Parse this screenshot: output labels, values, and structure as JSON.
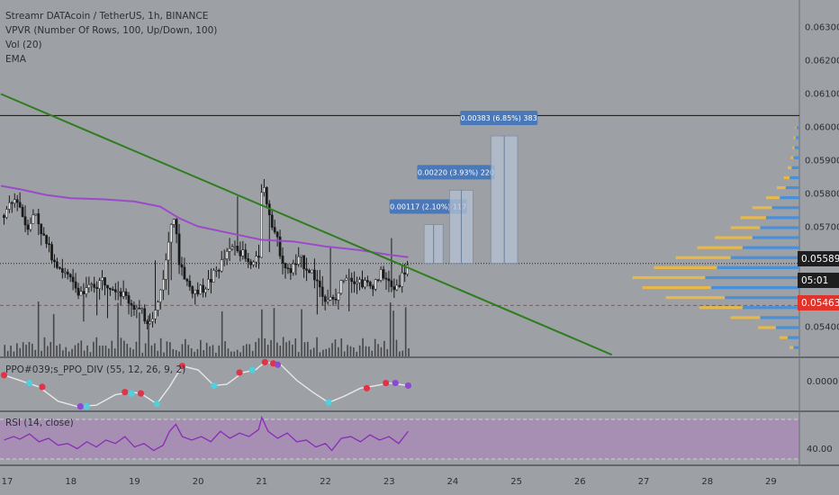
{
  "legend": {
    "title": "Streamr DATAcoin / TetherUS, 1h, BINANCE",
    "vpvr": "VPVR (Number Of Rows, 100, Up/Down, 100)",
    "vol": "Vol (20)",
    "ema": "EMA"
  },
  "ppo_label": "PPO#039;s_PPO_DIV (55, 12, 26, 9, 2)",
  "rsi_label": "RSI (14, close)",
  "tags": {
    "last_price": "0.05589",
    "countdown": "05:01",
    "red_level": "0.05463",
    "ppo_zero": "0.0000",
    "rsi_level": "40.00"
  },
  "colors": {
    "background": "#9da0a5",
    "candle": "#1a1a1a",
    "ema": "#9b4bc8",
    "trendline": "#2e7d1e",
    "red_level": "#e0332c",
    "vpvr_up": "#4a90d9",
    "vpvr_down": "#e6b84a",
    "ppo_line": "#e8e8e8",
    "ppo_dot_up": "#e0334a",
    "ppo_dot_down": "#4fd0e0",
    "ppo_dot_purple": "#8a4bd0",
    "rsi_line": "#8a2bb8",
    "rsi_fill": "#a98ab8",
    "projection_label": "#4a78b8",
    "projection_box": "#b7c2d4"
  },
  "chart_data": {
    "type": "candlestick",
    "x_ticks": [
      "17",
      "18",
      "19",
      "20",
      "21",
      "22",
      "23",
      "24",
      "25",
      "26",
      "27",
      "28",
      "29"
    ],
    "y_ticks": [
      "0.06300",
      "0.06200",
      "0.06100",
      "0.06000",
      "0.05900",
      "0.05800",
      "0.05700",
      "0.05400"
    ],
    "ylim": [
      0.0531,
      0.0638
    ],
    "last_price": 0.05589,
    "horizontal_line": 0.06033,
    "red_level": 0.05463,
    "trendline": [
      {
        "x": 16.9,
        "y": 0.06098
      },
      {
        "x": 26.5,
        "y": 0.05315
      }
    ],
    "projections": [
      {
        "label": "0.00117 (2.10%) 117",
        "x_start": 23.55,
        "x_end": 23.85,
        "base": 0.05589,
        "target": 0.05706
      },
      {
        "label": "0.00220 (3.93%) 220",
        "x_start": 23.95,
        "x_end": 24.32,
        "base": 0.05589,
        "target": 0.05809
      },
      {
        "label": "0.00383 (6.85%) 383",
        "x_start": 24.6,
        "x_end": 25.02,
        "base": 0.05589,
        "target": 0.05972
      }
    ],
    "ema_path": [
      [
        16.9,
        0.05822
      ],
      [
        17.2,
        0.05812
      ],
      [
        17.6,
        0.05795
      ],
      [
        18.0,
        0.05785
      ],
      [
        18.5,
        0.05782
      ],
      [
        19.0,
        0.05775
      ],
      [
        19.4,
        0.0576
      ],
      [
        19.7,
        0.05725
      ],
      [
        20.0,
        0.057
      ],
      [
        20.5,
        0.0568
      ],
      [
        21.0,
        0.0566
      ],
      [
        21.5,
        0.05655
      ],
      [
        22.0,
        0.0564
      ],
      [
        22.5,
        0.0563
      ],
      [
        23.0,
        0.05615
      ],
      [
        23.3,
        0.05608
      ]
    ],
    "price_path": [
      [
        16.9,
        0.0572
      ],
      [
        17.05,
        0.0576
      ],
      [
        17.15,
        0.0579
      ],
      [
        17.3,
        0.057
      ],
      [
        17.45,
        0.0574
      ],
      [
        17.6,
        0.0565
      ],
      [
        17.75,
        0.056
      ],
      [
        17.9,
        0.0556
      ],
      [
        18.05,
        0.0552
      ],
      [
        18.2,
        0.055
      ],
      [
        18.35,
        0.0552
      ],
      [
        18.5,
        0.0554
      ],
      [
        18.7,
        0.0552
      ],
      [
        18.9,
        0.0548
      ],
      [
        19.05,
        0.0545
      ],
      [
        19.2,
        0.0542
      ],
      [
        19.35,
        0.0545
      ],
      [
        19.5,
        0.056
      ],
      [
        19.6,
        0.0576
      ],
      [
        19.7,
        0.056
      ],
      [
        19.85,
        0.0552
      ],
      [
        20.0,
        0.055
      ],
      [
        20.2,
        0.0554
      ],
      [
        20.4,
        0.056
      ],
      [
        20.6,
        0.0565
      ],
      [
        20.8,
        0.0558
      ],
      [
        20.95,
        0.056
      ],
      [
        21.0,
        0.0584
      ],
      [
        21.1,
        0.0576
      ],
      [
        21.25,
        0.0565
      ],
      [
        21.4,
        0.0556
      ],
      [
        21.6,
        0.056
      ],
      [
        21.8,
        0.0556
      ],
      [
        22.0,
        0.0549
      ],
      [
        22.15,
        0.0547
      ],
      [
        22.3,
        0.0556
      ],
      [
        22.5,
        0.0554
      ],
      [
        22.7,
        0.0552
      ],
      [
        22.9,
        0.0556
      ],
      [
        23.05,
        0.0551
      ],
      [
        23.15,
        0.0553
      ],
      [
        23.3,
        0.05589
      ]
    ],
    "vpvr_profile": [
      [
        0.0599,
        3,
        1
      ],
      [
        0.0596,
        4,
        2
      ],
      [
        0.0593,
        5,
        2
      ],
      [
        0.059,
        6,
        3
      ],
      [
        0.0587,
        8,
        4
      ],
      [
        0.0584,
        10,
        6
      ],
      [
        0.0581,
        14,
        9
      ],
      [
        0.0578,
        20,
        14
      ],
      [
        0.0575,
        28,
        20
      ],
      [
        0.0572,
        34,
        26
      ],
      [
        0.0569,
        40,
        30
      ],
      [
        0.0566,
        48,
        38
      ],
      [
        0.0563,
        58,
        46
      ],
      [
        0.056,
        70,
        56
      ],
      [
        0.0557,
        84,
        64
      ],
      [
        0.0554,
        96,
        74
      ],
      [
        0.0551,
        90,
        70
      ],
      [
        0.0548,
        76,
        60
      ],
      [
        0.0545,
        58,
        44
      ],
      [
        0.0542,
        40,
        30
      ],
      [
        0.0539,
        24,
        18
      ],
      [
        0.0536,
        12,
        8
      ],
      [
        0.0533,
        6,
        4
      ]
    ],
    "ppo": {
      "zero": 0,
      "ylim": [
        -1,
        1
      ],
      "path": [
        [
          16.95,
          0.35
        ],
        [
          17.2,
          0.15
        ],
        [
          17.5,
          -0.1
        ],
        [
          17.8,
          -0.65
        ],
        [
          18.1,
          -0.85
        ],
        [
          18.4,
          -0.8
        ],
        [
          18.7,
          -0.4
        ],
        [
          18.95,
          -0.3
        ],
        [
          19.1,
          -0.35
        ],
        [
          19.35,
          -0.75
        ],
        [
          19.55,
          -0.1
        ],
        [
          19.75,
          0.7
        ],
        [
          20.0,
          0.55
        ],
        [
          20.25,
          -0.05
        ],
        [
          20.45,
          0.0
        ],
        [
          20.7,
          0.45
        ],
        [
          20.9,
          0.55
        ],
        [
          21.05,
          0.85
        ],
        [
          21.3,
          0.75
        ],
        [
          21.55,
          0.15
        ],
        [
          21.8,
          -0.3
        ],
        [
          22.05,
          -0.7
        ],
        [
          22.3,
          -0.45
        ],
        [
          22.55,
          -0.15
        ],
        [
          22.8,
          -0.05
        ],
        [
          23.0,
          0.05
        ],
        [
          23.3,
          -0.05
        ]
      ],
      "dots": [
        [
          16.95,
          0.35,
          "up"
        ],
        [
          17.35,
          0.05,
          "down"
        ],
        [
          17.55,
          -0.1,
          "up"
        ],
        [
          18.15,
          -0.85,
          "purple"
        ],
        [
          18.25,
          -0.85,
          "down"
        ],
        [
          18.85,
          -0.3,
          "up"
        ],
        [
          18.95,
          -0.35,
          "down"
        ],
        [
          19.1,
          -0.35,
          "up"
        ],
        [
          19.35,
          -0.75,
          "down"
        ],
        [
          19.75,
          0.7,
          "up"
        ],
        [
          20.25,
          -0.05,
          "down"
        ],
        [
          20.65,
          0.45,
          "up"
        ],
        [
          20.85,
          0.55,
          "down"
        ],
        [
          21.05,
          0.85,
          "up"
        ],
        [
          21.18,
          0.8,
          "up"
        ],
        [
          21.25,
          0.75,
          "purple"
        ],
        [
          22.05,
          -0.7,
          "down"
        ],
        [
          22.65,
          -0.15,
          "up"
        ],
        [
          22.95,
          0.05,
          "up"
        ],
        [
          23.1,
          0.05,
          "purple"
        ],
        [
          23.3,
          -0.05,
          "purple"
        ]
      ]
    },
    "rsi": {
      "ylim": [
        20,
        80
      ],
      "path": [
        [
          16.95,
          48
        ],
        [
          17.1,
          52
        ],
        [
          17.2,
          49
        ],
        [
          17.35,
          55
        ],
        [
          17.5,
          46
        ],
        [
          17.65,
          50
        ],
        [
          17.8,
          42
        ],
        [
          17.95,
          44
        ],
        [
          18.1,
          38
        ],
        [
          18.25,
          46
        ],
        [
          18.4,
          40
        ],
        [
          18.55,
          48
        ],
        [
          18.7,
          44
        ],
        [
          18.85,
          52
        ],
        [
          19.0,
          40
        ],
        [
          19.15,
          44
        ],
        [
          19.3,
          36
        ],
        [
          19.45,
          42
        ],
        [
          19.55,
          58
        ],
        [
          19.65,
          66
        ],
        [
          19.75,
          52
        ],
        [
          19.9,
          48
        ],
        [
          20.05,
          52
        ],
        [
          20.2,
          46
        ],
        [
          20.35,
          58
        ],
        [
          20.5,
          50
        ],
        [
          20.65,
          56
        ],
        [
          20.8,
          52
        ],
        [
          20.95,
          60
        ],
        [
          21.0,
          74
        ],
        [
          21.1,
          58
        ],
        [
          21.25,
          50
        ],
        [
          21.4,
          56
        ],
        [
          21.55,
          46
        ],
        [
          21.7,
          48
        ],
        [
          21.85,
          40
        ],
        [
          22.0,
          44
        ],
        [
          22.1,
          36
        ],
        [
          22.25,
          50
        ],
        [
          22.4,
          52
        ],
        [
          22.55,
          46
        ],
        [
          22.7,
          54
        ],
        [
          22.85,
          48
        ],
        [
          23.0,
          52
        ],
        [
          23.15,
          44
        ],
        [
          23.3,
          58
        ]
      ]
    }
  }
}
